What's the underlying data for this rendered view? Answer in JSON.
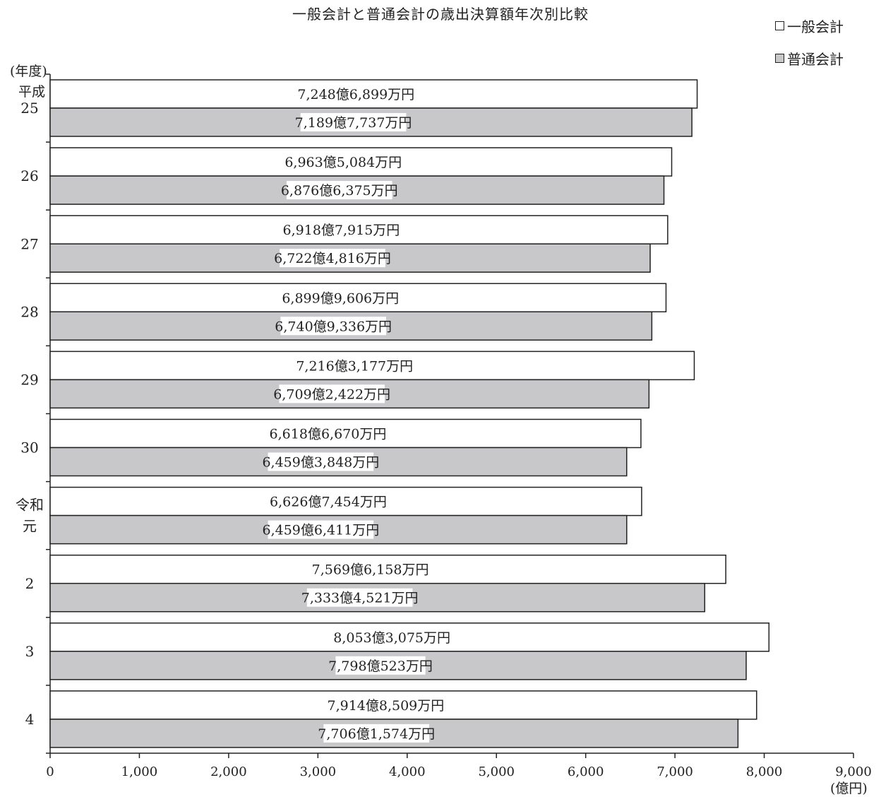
{
  "chart_data": {
    "type": "bar",
    "orientation": "horizontal",
    "title": "一般会計と普通会計の歳出決算額年次別比較",
    "y_unit_label": "(年度)",
    "era_label": "平成",
    "x_unit_label": "(億円)",
    "xlim": [
      0,
      9000
    ],
    "x_ticks": [
      "0",
      "1,000",
      "2,000",
      "3,000",
      "4,000",
      "5,000",
      "6,000",
      "7,000",
      "8,000",
      "9,000"
    ],
    "x_tick_values": [
      0,
      1000,
      2000,
      3000,
      4000,
      5000,
      6000,
      7000,
      8000,
      9000
    ],
    "legend_position": "top-right",
    "categories": [
      "25",
      "26",
      "27",
      "28",
      "29",
      "30",
      "令和\n元",
      "2",
      "3",
      "4"
    ],
    "series": [
      {
        "name": "一般会計",
        "color": "#ffffff",
        "values": [
          7248.6899,
          6963.5084,
          6918.7915,
          6899.9606,
          7216.3177,
          6618.667,
          6626.7454,
          7569.6158,
          8053.3075,
          7914.8509
        ],
        "labels": [
          "7,248億6,899万円",
          "6,963億5,084万円",
          "6,918億7,915万円",
          "6,899億9,606万円",
          "7,216億3,177万円",
          "6,618億6,670万円",
          "6,626億7,454万円",
          "7,569億6,158万円",
          "8,053億3,075万円",
          "7,914億8,509万円"
        ]
      },
      {
        "name": "普通会計",
        "color": "#c8c8cb",
        "values": [
          7189.7737,
          6876.6375,
          6722.4816,
          6740.9336,
          6709.2422,
          6459.3848,
          6459.6411,
          7333.4521,
          7798.0523,
          7706.1574
        ],
        "labels": [
          "7,189億7,737万円",
          "6,876億6,375万円",
          "6,722億4,816万円",
          "6,740億9,336万円",
          "6,709億2,422万円",
          "6,459億3,848万円",
          "6,459億6,411万円",
          "7,333億4,521万円",
          "7,798億523万円",
          "7,706億1,574万円"
        ]
      }
    ]
  }
}
